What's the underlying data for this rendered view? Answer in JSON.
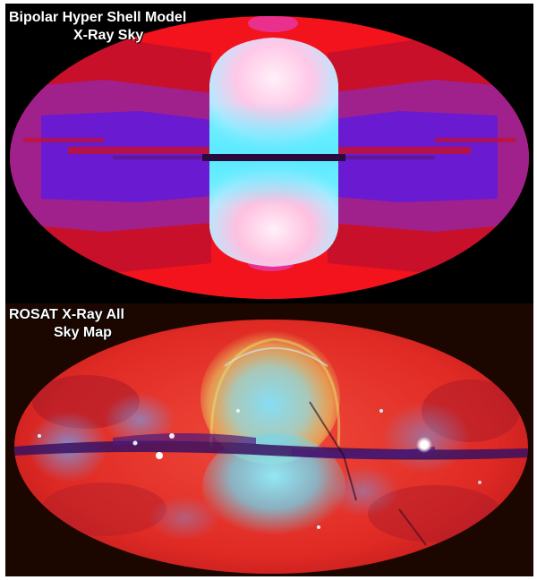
{
  "top_panel": {
    "caption_line1": "Bipolar Hyper Shell Model",
    "caption_line2": "X-Ray Sky",
    "colors": {
      "background": "#000000",
      "shell_red": "#f2131c",
      "band_dark_red": "#c8102a",
      "band_magenta": "#a0208c",
      "band_purple": "#6a1ad0",
      "lobe_pink": "#ffd8ec",
      "lobe_cyan": "#6ef0ff"
    }
  },
  "bottom_panel": {
    "caption_line1": "ROSAT X-Ray All",
    "caption_line2": "Sky Map",
    "colors": {
      "background": "#1c0700",
      "sky_red": "#e8322a",
      "galactic_plane": "#3a1060",
      "bubble_cyan": "#7fe6ff",
      "bubble_yellow": "#e8e26a",
      "bright_source": "#ffffff"
    }
  }
}
